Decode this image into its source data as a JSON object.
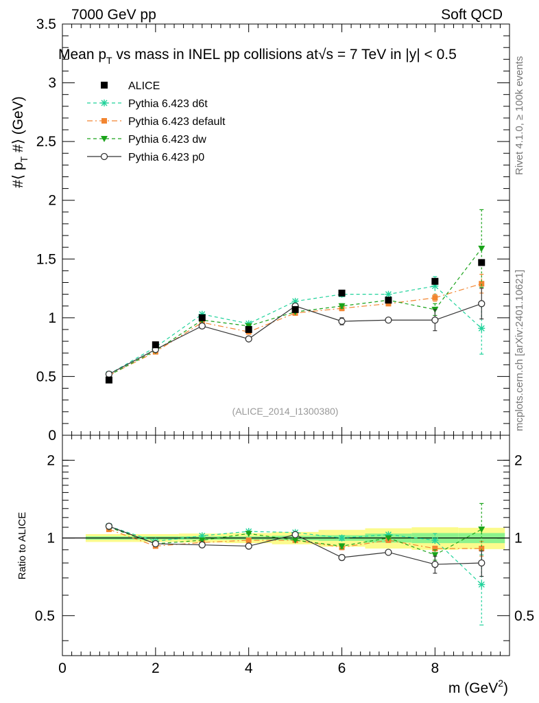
{
  "header": {
    "energy_label": "7000 GeV pp",
    "category_label": "Soft QCD",
    "title": "Mean p",
    "title_sub": "T",
    "title_rest": " vs mass in INEL pp collisions at",
    "title_sqrt": "√s",
    "title_end": " =  7 TeV in |y| < 0.5",
    "side_rivet": "Rivet 4.1.0, ≥ 100k events",
    "side_mcplots": "mcplots.cern.ch [arXiv:2401.10621]",
    "analysis_id": "(ALICE_2014_I1300380)"
  },
  "chart_data": [
    {
      "type": "line",
      "panel": "main",
      "title": "Mean pT vs mass in INEL pp collisions at √s = 7 TeV in |y| < 0.5",
      "ylabel": "#⟨ p_T #⟩ (GeV)",
      "ylabel_parts": {
        "a": "#⟨ p",
        "sub": "T",
        "b": " #⟩ (GeV)"
      },
      "xlim": [
        0,
        9.6
      ],
      "ylim": [
        0,
        3.5
      ],
      "y_ticks": [
        0,
        0.5,
        1,
        1.5,
        2,
        2.5,
        3,
        3.5
      ],
      "y_tick_labels": [
        "0",
        "0.5",
        "1",
        "1.5",
        "2",
        "2.5",
        "3",
        "3.5"
      ],
      "x": [
        1,
        2,
        3,
        4,
        5,
        6,
        7,
        8,
        9
      ],
      "series": [
        {
          "name": "ALICE",
          "color": "#000000",
          "marker": "square",
          "line": "none",
          "values": [
            0.47,
            0.77,
            1.0,
            0.9,
            1.07,
            1.21,
            1.15,
            1.31,
            1.47
          ]
        },
        {
          "name": "Pythia 6.423 d6t",
          "color": "#1fd29a",
          "marker": "star",
          "line": "dashed",
          "values": [
            0.52,
            0.75,
            1.03,
            0.95,
            1.14,
            1.2,
            1.2,
            1.27,
            0.91
          ],
          "errors": [
            0,
            0,
            0,
            0,
            0,
            0.02,
            0,
            0.08,
            0.22
          ]
        },
        {
          "name": "Pythia 6.423 default",
          "color": "#f28530",
          "marker": "square-small",
          "line": "dashdot",
          "values": [
            0.51,
            0.71,
            0.96,
            0.88,
            1.04,
            1.08,
            1.12,
            1.17,
            1.29
          ],
          "errors": [
            0,
            0,
            0,
            0,
            0,
            0.02,
            0,
            0.03,
            0.08
          ]
        },
        {
          "name": "Pythia 6.423 dw",
          "color": "#1aa31a",
          "marker": "triangle-down",
          "line": "dashed",
          "values": [
            0.51,
            0.72,
            0.98,
            0.93,
            1.05,
            1.1,
            1.15,
            1.07,
            1.59
          ],
          "errors": [
            0,
            0,
            0,
            0,
            0,
            0.02,
            0,
            0.05,
            0.33
          ]
        },
        {
          "name": "Pythia 6.423 p0",
          "color": "#333333",
          "marker": "circle-open",
          "line": "solid",
          "values": [
            0.52,
            0.73,
            0.93,
            0.82,
            1.1,
            0.97,
            0.98,
            0.98,
            1.12
          ],
          "errors": [
            0,
            0,
            0.02,
            0,
            0,
            0.03,
            0,
            0.09,
            0.13
          ]
        }
      ]
    },
    {
      "type": "line",
      "panel": "ratio",
      "ylabel": "Ratio to ALICE",
      "xlabel": "m (GeV",
      "xlabel_sup": "2",
      "xlabel_end": ")",
      "xlim": [
        0,
        9.6
      ],
      "ylim": [
        0.35,
        2.5
      ],
      "y_ticks": [
        0.5,
        1,
        2
      ],
      "y_tick_labels": [
        "0.5",
        "1",
        "2"
      ],
      "x_ticks": [
        0,
        2,
        4,
        6,
        8
      ],
      "x_tick_labels": [
        "0",
        "2",
        "4",
        "6",
        "8"
      ],
      "x": [
        1,
        2,
        3,
        4,
        5,
        6,
        7,
        8,
        9
      ],
      "bands": {
        "bin_edges": [
          0.5,
          1.5,
          2.5,
          3.5,
          4.5,
          5.5,
          6.5,
          7.5,
          8.5,
          9.5
        ],
        "stat_err": [
          0.015,
          0.015,
          0.015,
          0.015,
          0.02,
          0.025,
          0.04,
          0.045,
          0.045
        ],
        "total_err": [
          0.035,
          0.035,
          0.04,
          0.045,
          0.055,
          0.075,
          0.09,
          0.1,
          0.095
        ],
        "stat_color": "#8cf28c",
        "total_color": "#fbfb8c"
      },
      "series": [
        {
          "name": "Pythia 6.423 d6t",
          "color": "#1fd29a",
          "marker": "star",
          "line": "dashed",
          "values": [
            1.11,
            0.97,
            1.02,
            1.06,
            1.05,
            1.0,
            1.03,
            0.98,
            0.66
          ],
          "errors": [
            0,
            0,
            0,
            0,
            0,
            0.02,
            0,
            0.06,
            0.2
          ]
        },
        {
          "name": "Pythia 6.423 default",
          "color": "#f28530",
          "marker": "square-small",
          "line": "dashdot",
          "values": [
            1.08,
            0.93,
            0.96,
            0.98,
            0.98,
            0.92,
            0.98,
            0.91,
            0.91
          ],
          "errors": [
            0,
            0,
            0,
            0,
            0,
            0.02,
            0,
            0.02,
            0.06
          ]
        },
        {
          "name": "Pythia 6.423 dw",
          "color": "#1aa31a",
          "marker": "triangle-down",
          "line": "dashed",
          "values": [
            1.1,
            0.95,
            0.98,
            1.04,
            0.98,
            0.93,
            1.0,
            0.86,
            1.08
          ],
          "errors": [
            0,
            0,
            0,
            0,
            0,
            0.02,
            0,
            0.04,
            0.28
          ]
        },
        {
          "name": "Pythia 6.423 p0",
          "color": "#333333",
          "marker": "circle-open",
          "line": "solid",
          "values": [
            1.11,
            0.95,
            0.94,
            0.93,
            1.03,
            0.84,
            0.88,
            0.79,
            0.8
          ],
          "errors": [
            0,
            0,
            0,
            0,
            0,
            0.02,
            0,
            0.06,
            0.09
          ]
        }
      ]
    }
  ]
}
